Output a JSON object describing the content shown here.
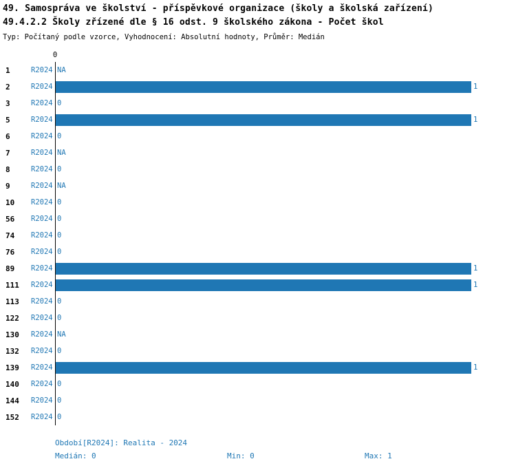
{
  "title": {
    "line1": "49. Samospráva ve školství - příspěvkové organizace (školy a školská zařízení)",
    "line2": "49.4.2.2 Školy zřízené dle § 16 odst. 9 školského zákona - Počet škol",
    "subtitle": "Typ: Počítaný podle vzorce, Vyhodnocení: Absolutní hodnoty, Průměr: Medián"
  },
  "chart_data": {
    "type": "bar",
    "orientation": "horizontal",
    "axis_zero_label": "0",
    "xlim": [
      0,
      1
    ],
    "grid": false,
    "legend": "none",
    "series_label": "R2024",
    "colors": {
      "bar": "#1f77b4",
      "accent": "#1f77b4"
    },
    "rows": [
      {
        "category": "1",
        "period": "R2024",
        "value": null,
        "display": "NA"
      },
      {
        "category": "2",
        "period": "R2024",
        "value": 1,
        "display": "1"
      },
      {
        "category": "3",
        "period": "R2024",
        "value": 0,
        "display": "0"
      },
      {
        "category": "5",
        "period": "R2024",
        "value": 1,
        "display": "1"
      },
      {
        "category": "6",
        "period": "R2024",
        "value": 0,
        "display": "0"
      },
      {
        "category": "7",
        "period": "R2024",
        "value": null,
        "display": "NA"
      },
      {
        "category": "8",
        "period": "R2024",
        "value": 0,
        "display": "0"
      },
      {
        "category": "9",
        "period": "R2024",
        "value": null,
        "display": "NA"
      },
      {
        "category": "10",
        "period": "R2024",
        "value": 0,
        "display": "0"
      },
      {
        "category": "56",
        "period": "R2024",
        "value": 0,
        "display": "0"
      },
      {
        "category": "74",
        "period": "R2024",
        "value": 0,
        "display": "0"
      },
      {
        "category": "76",
        "period": "R2024",
        "value": 0,
        "display": "0"
      },
      {
        "category": "89",
        "period": "R2024",
        "value": 1,
        "display": "1"
      },
      {
        "category": "111",
        "period": "R2024",
        "value": 1,
        "display": "1"
      },
      {
        "category": "113",
        "period": "R2024",
        "value": 0,
        "display": "0"
      },
      {
        "category": "122",
        "period": "R2024",
        "value": 0,
        "display": "0"
      },
      {
        "category": "130",
        "period": "R2024",
        "value": null,
        "display": "NA"
      },
      {
        "category": "132",
        "period": "R2024",
        "value": 0,
        "display": "0"
      },
      {
        "category": "139",
        "period": "R2024",
        "value": 1,
        "display": "1"
      },
      {
        "category": "140",
        "period": "R2024",
        "value": 0,
        "display": "0"
      },
      {
        "category": "144",
        "period": "R2024",
        "value": 0,
        "display": "0"
      },
      {
        "category": "152",
        "period": "R2024",
        "value": 0,
        "display": "0"
      }
    ]
  },
  "footer": {
    "period_line": "Období[R2024]: Realita - 2024",
    "median": "Medián: 0",
    "min": "Min: 0",
    "max": "Max: 1"
  }
}
